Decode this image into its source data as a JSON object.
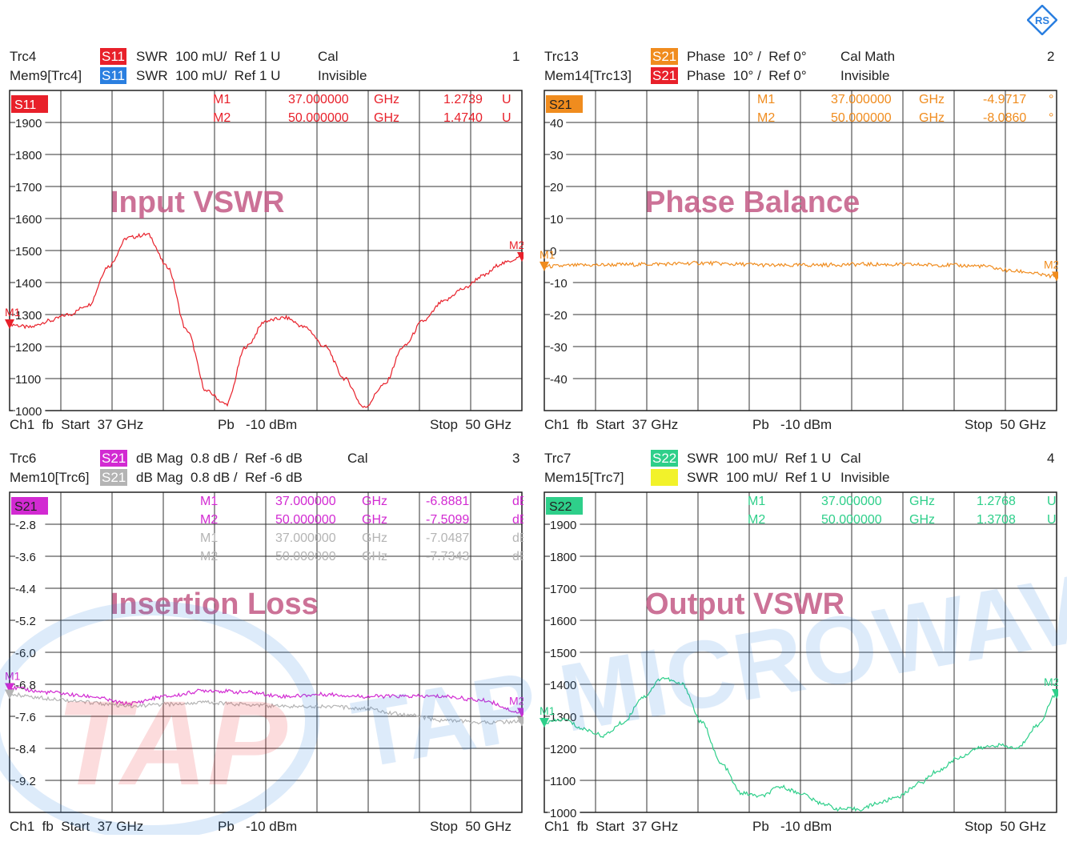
{
  "colors": {
    "s11_red": "#e8202a",
    "s11_blue": "#2a7fe0",
    "s21_orange": "#f08c1e",
    "s21_red": "#e8202a",
    "s21_magenta": "#d22ad2",
    "s21_gray": "#b4b4b4",
    "s22_green": "#2ecf8a",
    "s22_yellow": "#f2f22a",
    "grid": "#222222"
  },
  "watermark": {
    "logo_text": "TAP",
    "brand": "TAP MICROWAV"
  },
  "panels": [
    {
      "id": "p1",
      "number": "1",
      "trace1": {
        "name": "Trc4",
        "tag": "S11",
        "desc": "SWR  100 mU/  Ref 1 U",
        "extra": "Cal",
        "color": "#e8202a"
      },
      "trace2": {
        "name": "Mem9[Trc4]",
        "tag": "S11",
        "desc": "SWR  100 mU/  Ref 1 U",
        "extra": "Invisible",
        "color": "#2a7fe0"
      },
      "badge": "S11",
      "markers": [
        {
          "name": "M1",
          "freq": "37.000000",
          "unit": "GHz",
          "value": "1.2739",
          "vunit": "U"
        },
        {
          "name": "M2",
          "freq": "50.000000",
          "unit": "GHz",
          "value": "1.4740",
          "vunit": "U"
        }
      ],
      "title": "Input VSWR",
      "footer": {
        "left": "Ch1  fb  Start  37 GHz",
        "mid": "Pb   -10 dBm",
        "right": "Stop  50 GHz"
      }
    },
    {
      "id": "p2",
      "number": "2",
      "trace1": {
        "name": "Trc13",
        "tag": "S21",
        "desc": "Phase  10° /  Ref 0°",
        "extra": "Cal Math",
        "color": "#f08c1e"
      },
      "trace2": {
        "name": "Mem14[Trc13]",
        "tag": "S21",
        "desc": "Phase  10° /  Ref 0°",
        "extra": "Invisible",
        "color": "#e8202a"
      },
      "badge": "S21",
      "markers": [
        {
          "name": "M1",
          "freq": "37.000000",
          "unit": "GHz",
          "value": "-4.9717",
          "vunit": "°"
        },
        {
          "name": "M2",
          "freq": "50.000000",
          "unit": "GHz",
          "value": "-8.0860",
          "vunit": "°"
        }
      ],
      "title": "Phase Balance",
      "footer": {
        "left": "Ch1  fb  Start  37 GHz",
        "mid": "Pb   -10 dBm",
        "right": "Stop  50 GHz"
      }
    },
    {
      "id": "p3",
      "number": "3",
      "trace1": {
        "name": "Trc6",
        "tag": "S21",
        "desc": "dB Mag  0.8 dB /  Ref -6 dB",
        "extra": "Cal",
        "color": "#d22ad2"
      },
      "trace2": {
        "name": "Mem10[Trc6]",
        "tag": "S21",
        "desc": "dB Mag  0.8 dB /  Ref -6 dB",
        "extra": "",
        "color": "#b4b4b4"
      },
      "badge": "S21",
      "markers": [
        {
          "name": "M1",
          "freq": "37.000000",
          "unit": "GHz",
          "value": "-6.8881",
          "vunit": "dB"
        },
        {
          "name": "M2",
          "freq": "50.000000",
          "unit": "GHz",
          "value": "-7.5099",
          "vunit": "dB"
        },
        {
          "name": "M1",
          "freq": "37.000000",
          "unit": "GHz",
          "value": "-7.0487",
          "vunit": "dB"
        },
        {
          "name": "M2",
          "freq": "50.000000",
          "unit": "GHz",
          "value": "-7.7343",
          "vunit": "dB"
        }
      ],
      "title": "Insertion Loss",
      "footer": {
        "left": "Ch1  fb  Start  37 GHz",
        "mid": "Pb   -10 dBm",
        "right": "Stop  50 GHz"
      }
    },
    {
      "id": "p4",
      "number": "4",
      "trace1": {
        "name": "Trc7",
        "tag": "S22",
        "desc": "SWR  100 mU/  Ref 1 U",
        "extra": "Cal",
        "color": "#2ecf8a"
      },
      "trace2": {
        "name": "Mem15[Trc7]",
        "tag": "S22",
        "desc": "SWR  100 mU/  Ref 1 U",
        "extra": "Invisible",
        "color": "#f2f22a"
      },
      "badge": "S22",
      "markers": [
        {
          "name": "M1",
          "freq": "37.000000",
          "unit": "GHz",
          "value": "1.2768",
          "vunit": "U"
        },
        {
          "name": "M2",
          "freq": "50.000000",
          "unit": "GHz",
          "value": "1.3708",
          "vunit": "U"
        }
      ],
      "title": "Output VSWR",
      "footer": {
        "left": "Ch1  fb  Start  37 GHz",
        "mid": "Pb   -10 dBm",
        "right": "Stop  50 GHz"
      }
    }
  ],
  "chart_data": [
    {
      "type": "line",
      "id": "p1",
      "xlim": [
        37,
        50
      ],
      "ylim": [
        1.0,
        2.0
      ],
      "yticks": [
        1.0,
        1.1,
        1.2,
        1.3,
        1.4,
        1.5,
        1.6,
        1.7,
        1.8,
        1.9
      ],
      "ytick_labels": [
        "1000",
        "1100",
        "1200",
        "1300",
        "1400",
        "1500",
        "1600",
        "1700",
        "1800",
        "1900"
      ],
      "series": [
        {
          "color": "#e8202a",
          "x": [
            37,
            37.5,
            38,
            38.5,
            39,
            39.5,
            40,
            40.5,
            41,
            41.5,
            42,
            42.5,
            43,
            43.5,
            44,
            44.5,
            45,
            45.5,
            46,
            46.5,
            47,
            47.5,
            48,
            48.5,
            49,
            49.5,
            50
          ],
          "y": [
            1.27,
            1.26,
            1.28,
            1.3,
            1.33,
            1.45,
            1.54,
            1.55,
            1.45,
            1.25,
            1.06,
            1.02,
            1.2,
            1.28,
            1.29,
            1.26,
            1.2,
            1.1,
            1.01,
            1.08,
            1.2,
            1.28,
            1.34,
            1.38,
            1.42,
            1.46,
            1.48
          ]
        }
      ]
    },
    {
      "type": "line",
      "id": "p2",
      "xlim": [
        37,
        50
      ],
      "ylim": [
        -50,
        50
      ],
      "yticks": [
        -40,
        -30,
        -20,
        -10,
        0,
        10,
        20,
        30,
        40
      ],
      "ytick_labels": [
        "-40",
        "-30",
        "-20",
        "-10",
        "0",
        "10",
        "20",
        "30",
        "40"
      ],
      "series": [
        {
          "color": "#f08c1e",
          "x": [
            37,
            38,
            39,
            40,
            41,
            42,
            43,
            44,
            45,
            46,
            47,
            48,
            49,
            50
          ],
          "y": [
            -4.97,
            -4.6,
            -4.4,
            -4.2,
            -3.9,
            -4.3,
            -4.7,
            -4.5,
            -4.3,
            -4.4,
            -4.5,
            -4.8,
            -6.5,
            -8.09
          ]
        }
      ]
    },
    {
      "type": "line",
      "id": "p3",
      "xlim": [
        37,
        50
      ],
      "ylim": [
        -10.0,
        -2.0
      ],
      "yticks": [
        -9.2,
        -8.4,
        -7.6,
        -6.8,
        -6.0,
        -5.2,
        -4.4,
        -3.6,
        -2.8
      ],
      "ytick_labels": [
        "-9.2",
        "-8.4",
        "-7.6",
        "-6.8",
        "-6.0",
        "-5.2",
        "-4.4",
        "-3.6",
        "-2.8"
      ],
      "series": [
        {
          "color": "#d22ad2",
          "x": [
            37,
            38,
            39,
            40,
            41,
            42,
            43,
            44,
            45,
            46,
            47,
            48,
            49,
            50
          ],
          "y": [
            -6.89,
            -7.0,
            -7.1,
            -7.28,
            -7.1,
            -6.95,
            -7.0,
            -7.1,
            -7.05,
            -7.1,
            -7.1,
            -7.1,
            -7.2,
            -7.51
          ]
        },
        {
          "color": "#b4b4b4",
          "x": [
            37,
            38,
            39,
            40,
            41,
            42,
            43,
            44,
            45,
            46,
            47,
            48,
            49,
            50
          ],
          "y": [
            -7.05,
            -7.15,
            -7.25,
            -7.35,
            -7.3,
            -7.25,
            -7.3,
            -7.35,
            -7.35,
            -7.4,
            -7.55,
            -7.7,
            -7.75,
            -7.73
          ]
        }
      ]
    },
    {
      "type": "line",
      "id": "p4",
      "xlim": [
        37,
        50
      ],
      "ylim": [
        1.0,
        2.0
      ],
      "yticks": [
        1.0,
        1.1,
        1.2,
        1.3,
        1.4,
        1.5,
        1.6,
        1.7,
        1.8,
        1.9
      ],
      "ytick_labels": [
        "1000",
        "1100",
        "1200",
        "1300",
        "1400",
        "1500",
        "1600",
        "1700",
        "1800",
        "1900"
      ],
      "series": [
        {
          "color": "#2ecf8a",
          "x": [
            37,
            37.5,
            38,
            38.5,
            39,
            39.5,
            40,
            40.5,
            41,
            41.5,
            42,
            42.5,
            43,
            43.5,
            44,
            44.5,
            45,
            45.5,
            46,
            46.5,
            47,
            47.5,
            48,
            48.5,
            49,
            49.5,
            50
          ],
          "y": [
            1.28,
            1.29,
            1.26,
            1.24,
            1.28,
            1.36,
            1.42,
            1.4,
            1.28,
            1.15,
            1.06,
            1.05,
            1.08,
            1.06,
            1.03,
            1.01,
            1.01,
            1.03,
            1.05,
            1.09,
            1.13,
            1.17,
            1.2,
            1.21,
            1.2,
            1.27,
            1.37
          ]
        }
      ]
    }
  ]
}
